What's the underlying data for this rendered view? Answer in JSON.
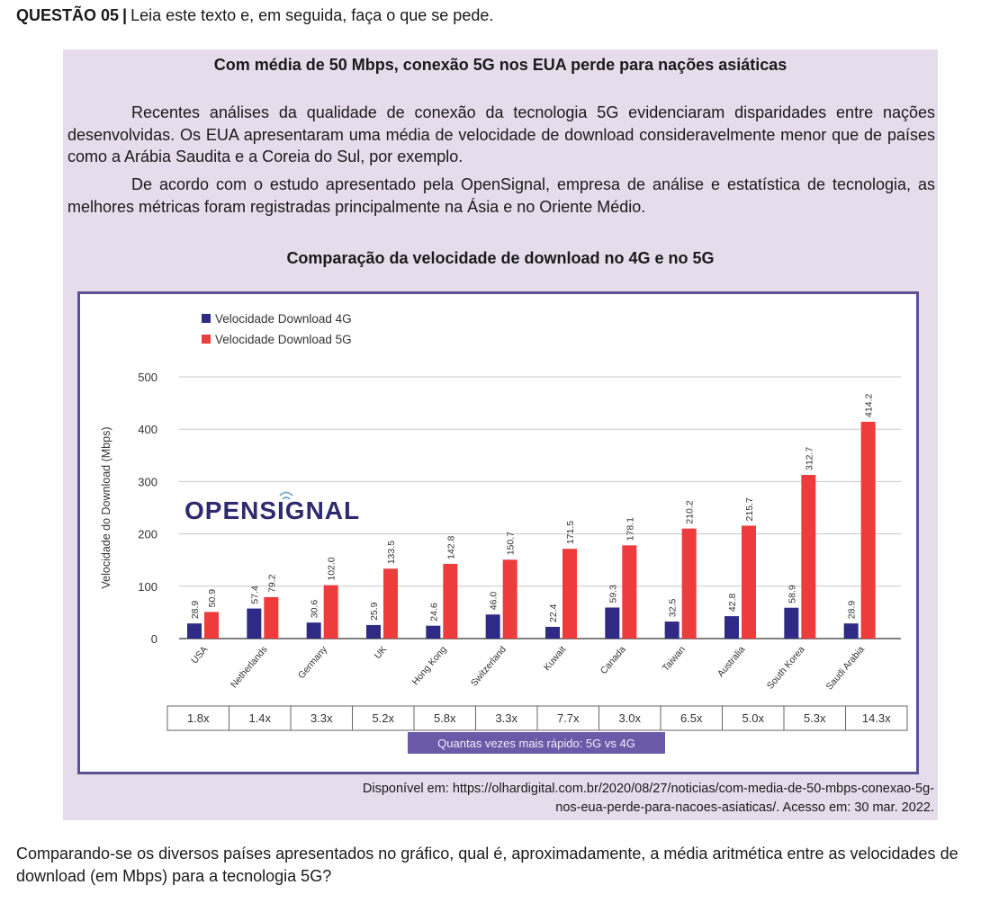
{
  "header": {
    "question_number": "QUESTÃO 05",
    "separator": "|",
    "instruction": "Leia este texto e, em seguida, faça o que se pede."
  },
  "article": {
    "title": "Com média de 50 Mbps, conexão 5G nos EUA perde para nações asiáticas",
    "paragraphs": [
      "Recentes análises da qualidade de conexão da tecnologia 5G evidenciaram disparidades entre nações desenvolvidas. Os EUA apresentaram uma média de velocidade de download consideravelmente menor que de países como a Arábia Saudita e a Coreia do Sul, por exemplo.",
      "De acordo com o estudo apresentado pela OpenSignal, empresa de análise e estatística de tecnologia, as melhores métricas foram registradas principalmente na Ásia e no Oriente Médio."
    ]
  },
  "chart_heading": "Comparação da velocidade de download no 4G e no 5G",
  "chart_data": {
    "type": "bar",
    "ylabel": "Velocidade do Download (Mbps)",
    "xlabel": "",
    "ylim": [
      0,
      500
    ],
    "yticks": [
      0,
      100,
      200,
      300,
      400,
      500
    ],
    "grid": true,
    "legend_position": "top-left",
    "brand": "OPENSIGNAL",
    "categories": [
      "USA",
      "Netherlands",
      "Germany",
      "UK",
      "Hong Kong",
      "Switzerland",
      "Kuwait",
      "Canada",
      "Taiwan",
      "Australia",
      "South Korea",
      "Saudi Arabia"
    ],
    "series": [
      {
        "name": "Velocidade Download 4G",
        "color": "#2e2a85",
        "values": [
          28.9,
          57.4,
          30.6,
          25.9,
          24.6,
          46.0,
          22.4,
          59.3,
          32.5,
          42.8,
          58.9,
          28.9
        ],
        "labels": [
          "28.9",
          "57.4",
          "30.6",
          "25.9",
          "24.6",
          "46.0",
          "22.4",
          "59.3",
          "32.5",
          "42.8",
          "58.9",
          "28.9"
        ]
      },
      {
        "name": "Velocidade Download 5G",
        "color": "#ee3b3b",
        "values": [
          50.9,
          79.2,
          102.0,
          133.5,
          142.8,
          150.7,
          171.5,
          178.1,
          210.2,
          215.7,
          312.7,
          414.2
        ],
        "labels": [
          "50.9",
          "79.2",
          "102.0",
          "133.5",
          "142.8",
          "150.7",
          "171.5",
          "178.1",
          "210.2",
          "215.7",
          "312.7",
          "414.2"
        ]
      }
    ],
    "ratios": [
      "1.8x",
      "1.4x",
      "3.3x",
      "5.2x",
      "5.8x",
      "3.3x",
      "7.7x",
      "3.0x",
      "6.5x",
      "5.0x",
      "5.3x",
      "14.3x"
    ],
    "ratio_caption": "Quantas vezes mais rápido: 5G vs 4G"
  },
  "source": {
    "line1": "Disponível em: https://olhardigital.com.br/2020/08/27/noticias/com-media-de-50-mbps-conexao-5g-",
    "line2": "nos-eua-perde-para-nacoes-asiaticas/. Acesso em: 30 mar. 2022."
  },
  "question": "Comparando-se os diversos países apresentados no gráfico, qual é, aproximadamente, a média aritmética entre as velocidades de download (em Mbps) para a tecnologia 5G?"
}
